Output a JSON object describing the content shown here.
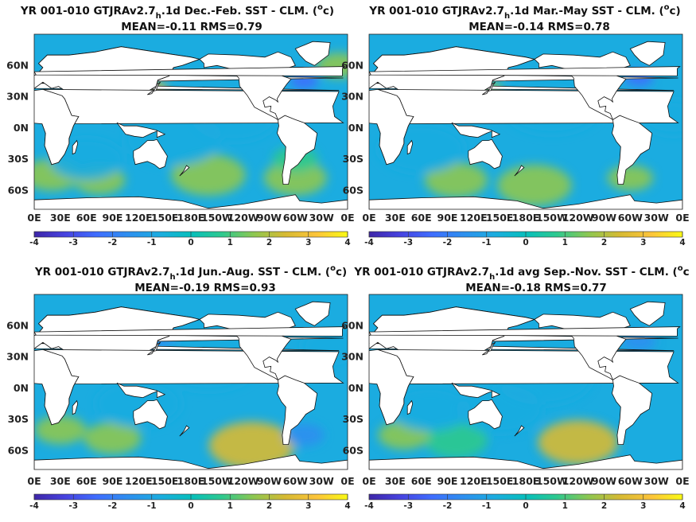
{
  "chart_data": [
    {
      "type": "heatmap",
      "title_parts": [
        "YR 001-010 GTJRAv2.7",
        "h",
        ".1d  Dec.-Feb. SST - CLM. (",
        "o",
        "c)"
      ],
      "subtitle": "MEAN=-0.11   RMS=0.79",
      "mean": -0.11,
      "rms": 0.79,
      "x_ticks": [
        "0E",
        "30E",
        "60E",
        "90E",
        "120E",
        "150E",
        "180E",
        "150W",
        "120W",
        "90W",
        "60W",
        "30W",
        "0E"
      ],
      "y_ticks": [
        "60N",
        "30N",
        "0N",
        "30S",
        "60S"
      ],
      "xlim": [
        0,
        360
      ],
      "ylim": [
        -78,
        90
      ],
      "colorbar_ticks": [
        "-4",
        "-3",
        "-2",
        "-1",
        "0",
        "1",
        "2",
        "3",
        "4"
      ],
      "clim": [
        -4,
        4
      ]
    },
    {
      "type": "heatmap",
      "title_parts": [
        "YR 001-010 GTJRAv2.7",
        "h",
        ".1d Mar.-May SST - CLM. (",
        "o",
        "c)"
      ],
      "subtitle": "MEAN=-0.14   RMS=0.78",
      "mean": -0.14,
      "rms": 0.78,
      "x_ticks": [
        "0E",
        "30E",
        "60E",
        "90E",
        "120E",
        "150E",
        "180E",
        "150W",
        "120W",
        "90W",
        "60W",
        "30W",
        "0E"
      ],
      "y_ticks": [
        "60N",
        "30N",
        "0N",
        "30S",
        "60S"
      ],
      "xlim": [
        0,
        360
      ],
      "ylim": [
        -78,
        90
      ],
      "colorbar_ticks": [
        "-4",
        "-3",
        "-2",
        "-1",
        "0",
        "1",
        "2",
        "3",
        "4"
      ],
      "clim": [
        -4,
        4
      ]
    },
    {
      "type": "heatmap",
      "title_parts": [
        "YR 001-010 GTJRAv2.7",
        "h",
        ".1d Jun.-Aug. SST - CLM. (",
        "o",
        "c)"
      ],
      "subtitle": "MEAN=-0.19   RMS=0.93",
      "mean": -0.19,
      "rms": 0.93,
      "x_ticks": [
        "0E",
        "30E",
        "60E",
        "90E",
        "120E",
        "150E",
        "180E",
        "150W",
        "120W",
        "90W",
        "60W",
        "30W",
        "0E"
      ],
      "y_ticks": [
        "60N",
        "30N",
        "0N",
        "30S",
        "60S"
      ],
      "xlim": [
        0,
        360
      ],
      "ylim": [
        -78,
        90
      ],
      "colorbar_ticks": [
        "-4",
        "-3",
        "-2",
        "-1",
        "0",
        "1",
        "2",
        "3",
        "4"
      ],
      "clim": [
        -4,
        4
      ]
    },
    {
      "type": "heatmap",
      "title_parts": [
        "YR 001-010 GTJRAv2.7",
        "h",
        ".1d avg Sep.-Nov. SST - CLM. (",
        "o",
        "c"
      ],
      "subtitle": "MEAN=-0.18   RMS=0.77",
      "mean": -0.18,
      "rms": 0.77,
      "x_ticks": [
        "0E",
        "30E",
        "60E",
        "90E",
        "120E",
        "150E",
        "180E",
        "150W",
        "120W",
        "90W",
        "60W",
        "30W",
        "0E"
      ],
      "y_ticks": [
        "60N",
        "30N",
        "0N",
        "30S",
        "60S"
      ],
      "xlim": [
        0,
        360
      ],
      "ylim": [
        -78,
        90
      ],
      "colorbar_ticks": [
        "-4",
        "-3",
        "-2",
        "-1",
        "0",
        "1",
        "2",
        "3",
        "4"
      ],
      "clim": [
        -4,
        4
      ]
    }
  ],
  "colormap": [
    "#3e26a8",
    "#4743e0",
    "#3f6dfe",
    "#2d8fef",
    "#1bace0",
    "#06bfbc",
    "#2ec98e",
    "#8dc751",
    "#d6ba33",
    "#fcc43a",
    "#f9f914"
  ],
  "ocean_color": "#1bace0",
  "land_color": "#ffffff"
}
